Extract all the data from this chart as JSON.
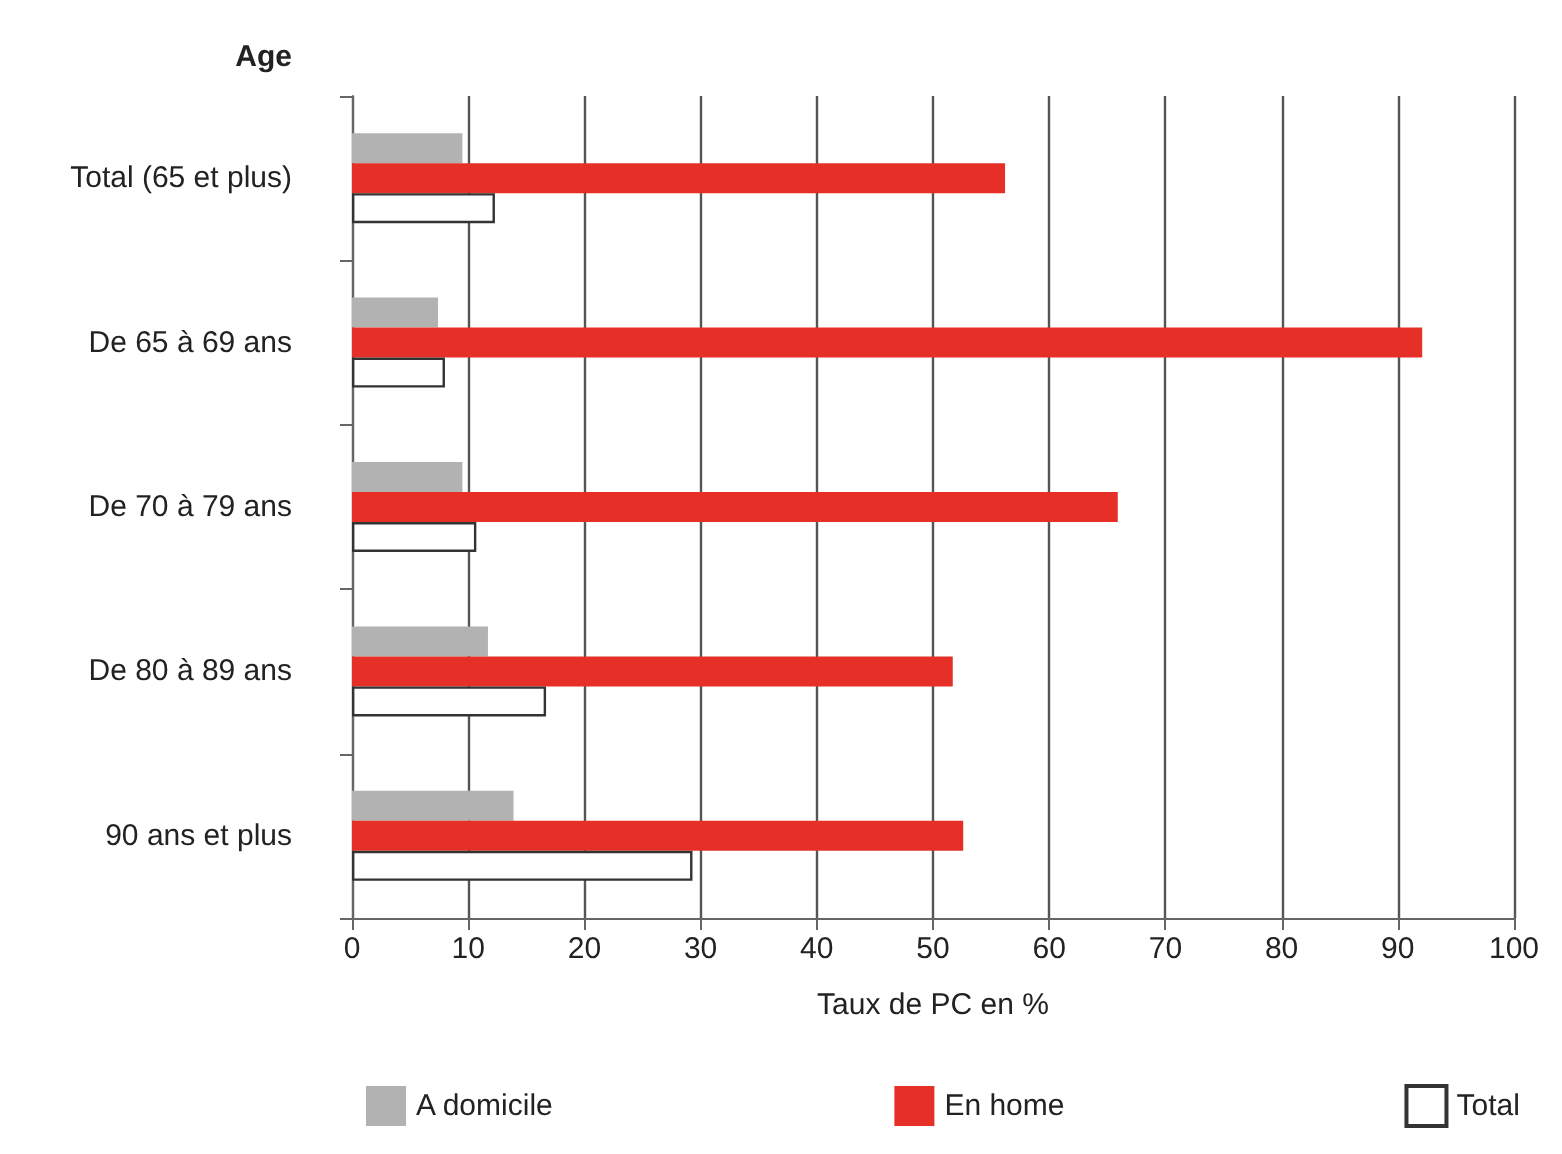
{
  "chart_data": {
    "type": "bar",
    "orientation": "horizontal",
    "ylabel": "Age",
    "xlabel": "Taux de PC en %",
    "categories": [
      "Total (65 et plus)",
      "De 65 à 69 ans",
      "De 70 à 79 ans",
      "De 80 à 89 ans",
      "90 ans et plus"
    ],
    "series": [
      {
        "name": "A domicile",
        "color": "#b2b2b2",
        "values": [
          9.5,
          7.4,
          9.5,
          11.7,
          13.9
        ]
      },
      {
        "name": "En home",
        "color": "#e63027",
        "values": [
          56.2,
          92.1,
          65.9,
          51.7,
          52.6
        ]
      },
      {
        "name": "Total",
        "color": "#ffffff",
        "values": [
          12.3,
          8.0,
          10.7,
          16.7,
          29.3
        ]
      }
    ],
    "xlim": [
      0,
      100
    ],
    "xticks": [
      0,
      10,
      20,
      30,
      40,
      50,
      60,
      70,
      80,
      90,
      100
    ],
    "grid": "x",
    "legend": "bottom"
  }
}
